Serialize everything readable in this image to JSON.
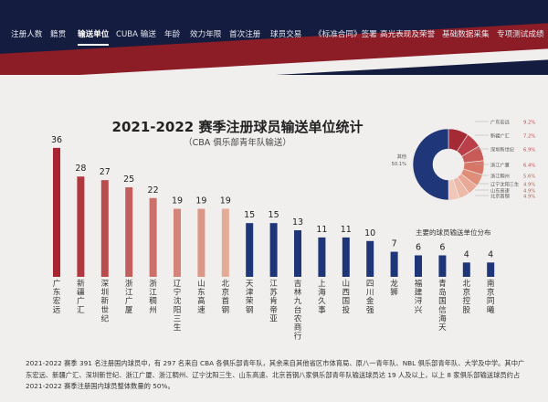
{
  "nav": {
    "items": [
      "注册人数",
      "籍贯",
      "输送单位",
      "CUBA 输送",
      "年龄",
      "效力年限",
      "首次注册",
      "球员交易",
      "《标准合同》签署",
      "高光表现及荣誉",
      "基础数据采集",
      "专项测试成绩"
    ],
    "active_index": 2
  },
  "colors": {
    "dark_red": "#a82430",
    "light_red": "#e4a394",
    "navy": "#1e3578",
    "header": "#141d3f",
    "accent": "#8c1c26"
  },
  "chart_data": {
    "type": "bar",
    "title": "2021-2022 赛季注册球员输送单位统计",
    "subtitle": "（CBA 俱乐部青年队输送）",
    "categories": [
      "广东宏远",
      "新疆广汇",
      "深圳新世纪",
      "浙江广厦",
      "浙江稠州",
      "辽宁沈阳三生",
      "山东高速",
      "北京首钢",
      "天津荣钢",
      "江苏肯帝亚",
      "吉林九台农商行",
      "上海久事",
      "山西国投",
      "四川金强",
      "龙狮",
      "福建浔兴",
      "青岛国信海天",
      "北京控股",
      "南京同曦"
    ],
    "values": [
      36,
      28,
      27,
      25,
      22,
      19,
      19,
      19,
      15,
      15,
      13,
      11,
      11,
      10,
      7,
      6,
      6,
      4,
      4
    ],
    "ylim": [
      0,
      40
    ],
    "pie": {
      "caption": "主要的球员输送单位分布",
      "slices": [
        {
          "label": "广东宏远",
          "value": 9.2,
          "value_text": "9.2%"
        },
        {
          "label": "新疆广汇",
          "value": 7.2,
          "value_text": "7.2%"
        },
        {
          "label": "深圳新世纪",
          "value": 6.9,
          "value_text": "6.9%"
        },
        {
          "label": "浙江广厦",
          "value": 6.4,
          "value_text": "6.4%"
        },
        {
          "label": "浙江稠州",
          "value": 5.6,
          "value_text": "5.6%"
        },
        {
          "label": "辽宁沈阳三生",
          "value": 4.9,
          "value_text": "4.9%"
        },
        {
          "label": "山东高速",
          "value": 4.9,
          "value_text": "4.9%"
        },
        {
          "label": "北京首钢",
          "value": 4.9,
          "value_text": "4.9%"
        },
        {
          "label": "其他",
          "value": 50.1,
          "value_text": "50.1%"
        }
      ]
    }
  },
  "footnote": "2021-2022 赛季 391 名注册国内球员中，有 297 名来自 CBA 各俱乐部青年队，其余来自其他省区市体育局、原八一青年队、NBL 俱乐部青年队、大学及中学。其中广东宏远、新疆广汇、深圳新世纪、浙江广厦、浙江稠州、辽宁沈阳三生、山东高速、北京首钢八家俱乐部青年队输送球员达 19 人及以上，以上 8 家俱乐部输送球员约占 2021-2022 赛季注册国内球员整体数量的 50%。"
}
